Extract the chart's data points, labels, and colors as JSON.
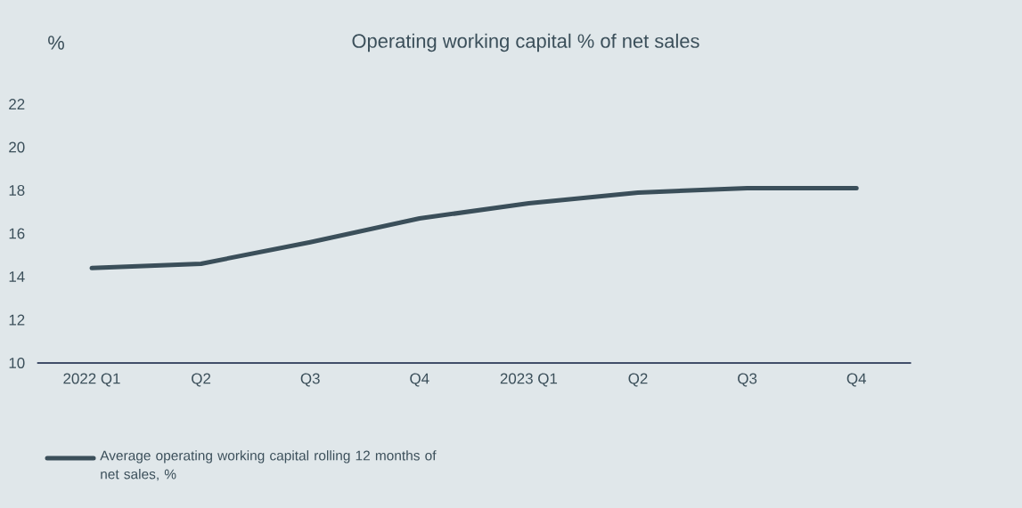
{
  "chart_data": {
    "type": "line",
    "title": "Operating working capital % of net sales",
    "ylabel": "%",
    "categories": [
      "2022 Q1",
      "Q2",
      "Q3",
      "Q4",
      "2023 Q1",
      "Q2",
      "Q3",
      "Q4"
    ],
    "series": [
      {
        "name": "Average operating working capital rolling 12 months of net sales, %",
        "color": "#3b4f5a",
        "values": [
          14.4,
          14.6,
          15.6,
          16.7,
          17.4,
          17.9,
          18.1,
          18.1
        ]
      }
    ],
    "ylim": [
      10,
      22
    ],
    "yticks": [
      10,
      12,
      14,
      16,
      18,
      20,
      22
    ],
    "legend": "bottom left"
  }
}
